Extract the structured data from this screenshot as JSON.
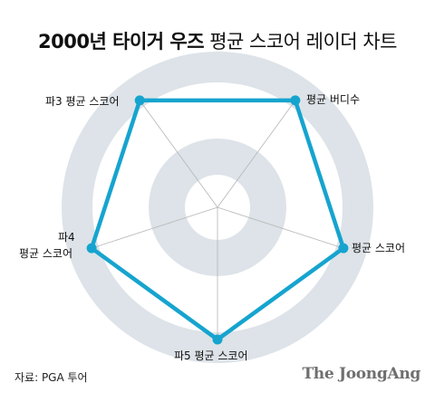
{
  "title": {
    "bold": "2000년 타이거 우즈",
    "light": " 평균 스코어 레이더 차트"
  },
  "footer": {
    "source": "자료: PGA 투어",
    "brand": "The JoongAng"
  },
  "colors": {
    "series": "#16a4cf",
    "ring": "#dde3e8",
    "spoke": "#b5b5b5"
  },
  "chart_data": {
    "type": "radar",
    "axes": [
      "평균 버디수",
      "평균 스코어",
      "파5 평균 스코어",
      "파4 평균 스코어",
      "파3 평균 스코어"
    ],
    "labels": {
      "birdie": "평균 버디수",
      "score": "평균 스코어",
      "par5": "파5 평균 스코어",
      "par4_line1": "파4",
      "par4_line2": "평균 스코어",
      "par3": "파3 평균 스코어"
    },
    "series": [
      {
        "values": [
          1,
          1,
          1,
          1,
          1
        ]
      }
    ],
    "rlim": [
      0,
      1
    ],
    "grid": "concentric bands"
  }
}
